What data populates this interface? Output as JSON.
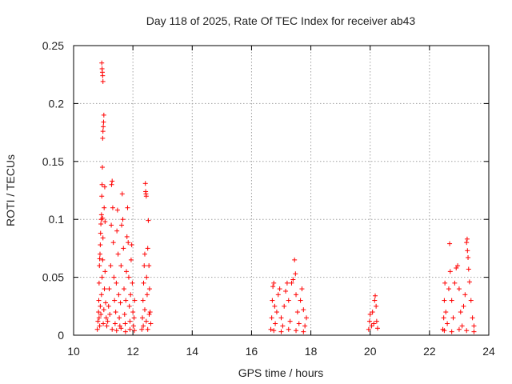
{
  "chart_data": {
    "type": "scatter",
    "title": "Day 118 of 2025, Rate Of TEC Index for receiver ab43",
    "xlabel": "GPS time / hours",
    "ylabel": "ROTI / TECUs",
    "xlim": [
      10,
      24
    ],
    "ylim": [
      0,
      0.25
    ],
    "x_ticks": [
      "10",
      "12",
      "14",
      "16",
      "18",
      "20",
      "22",
      "24"
    ],
    "y_ticks": [
      "0",
      "0.05",
      "0.1",
      "0.15",
      "0.2",
      "0.25"
    ],
    "grid": true,
    "marker": "+",
    "series_color": "#ff0000",
    "series": [
      {
        "points": [
          [
            10.8,
            0.005
          ],
          [
            10.82,
            0.012
          ],
          [
            10.84,
            0.02
          ],
          [
            10.85,
            0.03
          ],
          [
            10.86,
            0.045
          ],
          [
            10.87,
            0.06
          ],
          [
            10.88,
            0.066
          ],
          [
            10.89,
            0.07
          ],
          [
            10.9,
            0.078
          ],
          [
            10.91,
            0.088
          ],
          [
            10.92,
            0.096
          ],
          [
            10.93,
            0.1
          ],
          [
            10.94,
            0.104
          ],
          [
            10.95,
            0.12
          ],
          [
            10.96,
            0.13
          ],
          [
            10.97,
            0.145
          ],
          [
            10.98,
            0.101
          ],
          [
            10.99,
            0.084
          ],
          [
            10.86,
            0.015
          ],
          [
            10.88,
            0.008
          ],
          [
            10.9,
            0.025
          ],
          [
            10.92,
            0.018
          ],
          [
            10.94,
            0.035
          ],
          [
            10.96,
            0.05
          ],
          [
            10.98,
            0.065
          ],
          [
            11.0,
            0.01
          ],
          [
            11.02,
            0.022
          ],
          [
            11.04,
            0.04
          ],
          [
            11.06,
            0.055
          ],
          [
            11.08,
            0.028
          ],
          [
            11.1,
            0.015
          ],
          [
            11.12,
            0.008
          ],
          [
            10.95,
            0.235
          ],
          [
            10.96,
            0.23
          ],
          [
            10.97,
            0.227
          ],
          [
            10.98,
            0.224
          ],
          [
            10.99,
            0.219
          ],
          [
            11.02,
            0.19
          ],
          [
            11.01,
            0.184
          ],
          [
            11.0,
            0.18
          ],
          [
            10.99,
            0.176
          ],
          [
            10.98,
            0.17
          ],
          [
            11.05,
            0.128
          ],
          [
            11.03,
            0.11
          ],
          [
            11.06,
            0.098
          ],
          [
            11.15,
            0.012
          ],
          [
            11.18,
            0.025
          ],
          [
            11.2,
            0.04
          ],
          [
            11.22,
            0.018
          ],
          [
            11.25,
            0.06
          ],
          [
            11.27,
            0.095
          ],
          [
            11.28,
            0.13
          ],
          [
            11.3,
            0.133
          ],
          [
            11.32,
            0.11
          ],
          [
            11.34,
            0.08
          ],
          [
            11.36,
            0.05
          ],
          [
            11.38,
            0.03
          ],
          [
            11.4,
            0.01
          ],
          [
            11.42,
            0.02
          ],
          [
            11.44,
            0.045
          ],
          [
            11.46,
            0.09
          ],
          [
            11.48,
            0.108
          ],
          [
            11.5,
            0.07
          ],
          [
            11.52,
            0.035
          ],
          [
            11.54,
            0.015
          ],
          [
            11.56,
            0.008
          ],
          [
            11.58,
            0.028
          ],
          [
            11.6,
            0.06
          ],
          [
            11.62,
            0.095
          ],
          [
            11.64,
            0.122
          ],
          [
            11.66,
            0.1
          ],
          [
            11.68,
            0.075
          ],
          [
            11.7,
            0.04
          ],
          [
            11.72,
            0.018
          ],
          [
            11.74,
            0.01
          ],
          [
            11.76,
            0.03
          ],
          [
            11.78,
            0.055
          ],
          [
            11.8,
            0.085
          ],
          [
            11.82,
            0.11
          ],
          [
            11.84,
            0.08
          ],
          [
            11.86,
            0.05
          ],
          [
            11.88,
            0.025
          ],
          [
            11.9,
            0.012
          ],
          [
            11.92,
            0.035
          ],
          [
            11.94,
            0.065
          ],
          [
            11.96,
            0.078
          ],
          [
            11.98,
            0.045
          ],
          [
            12.0,
            0.02
          ],
          [
            12.02,
            0.008
          ],
          [
            12.04,
            0.015
          ],
          [
            12.06,
            0.03
          ],
          [
            11.3,
            0.005
          ],
          [
            11.45,
            0.004
          ],
          [
            11.6,
            0.006
          ],
          [
            11.75,
            0.003
          ],
          [
            11.9,
            0.005
          ],
          [
            12.05,
            0.004
          ],
          [
            12.3,
            0.005
          ],
          [
            12.32,
            0.015
          ],
          [
            12.34,
            0.03
          ],
          [
            12.36,
            0.045
          ],
          [
            12.38,
            0.06
          ],
          [
            12.4,
            0.07
          ],
          [
            12.42,
            0.131
          ],
          [
            12.43,
            0.124
          ],
          [
            12.44,
            0.122
          ],
          [
            12.45,
            0.12
          ],
          [
            12.46,
            0.05
          ],
          [
            12.48,
            0.035
          ],
          [
            12.5,
            0.075
          ],
          [
            12.52,
            0.099
          ],
          [
            12.54,
            0.06
          ],
          [
            12.56,
            0.04
          ],
          [
            12.58,
            0.02
          ],
          [
            12.6,
            0.01
          ],
          [
            12.35,
            0.008
          ],
          [
            12.4,
            0.022
          ],
          [
            12.45,
            0.012
          ],
          [
            12.5,
            0.005
          ],
          [
            12.55,
            0.018
          ],
          [
            16.65,
            0.005
          ],
          [
            16.68,
            0.015
          ],
          [
            16.7,
            0.03
          ],
          [
            16.72,
            0.042
          ],
          [
            16.75,
            0.045
          ],
          [
            16.78,
            0.025
          ],
          [
            16.8,
            0.01
          ],
          [
            16.85,
            0.02
          ],
          [
            16.9,
            0.035
          ],
          [
            16.95,
            0.04
          ],
          [
            17.0,
            0.015
          ],
          [
            17.05,
            0.008
          ],
          [
            17.1,
            0.025
          ],
          [
            17.15,
            0.038
          ],
          [
            17.2,
            0.045
          ],
          [
            17.25,
            0.03
          ],
          [
            17.3,
            0.012
          ],
          [
            17.35,
            0.045
          ],
          [
            17.4,
            0.048
          ],
          [
            17.45,
            0.065
          ],
          [
            17.48,
            0.053
          ],
          [
            17.5,
            0.035
          ],
          [
            17.55,
            0.02
          ],
          [
            17.6,
            0.01
          ],
          [
            17.65,
            0.03
          ],
          [
            17.7,
            0.04
          ],
          [
            17.75,
            0.022
          ],
          [
            17.8,
            0.008
          ],
          [
            17.85,
            0.015
          ],
          [
            16.75,
            0.004
          ],
          [
            17.0,
            0.003
          ],
          [
            17.25,
            0.005
          ],
          [
            17.5,
            0.004
          ],
          [
            17.75,
            0.003
          ],
          [
            19.95,
            0.005
          ],
          [
            19.98,
            0.012
          ],
          [
            20.0,
            0.018
          ],
          [
            20.05,
            0.008
          ],
          [
            20.08,
            0.02
          ],
          [
            20.12,
            0.01
          ],
          [
            20.15,
            0.03
          ],
          [
            20.17,
            0.034
          ],
          [
            20.2,
            0.025
          ],
          [
            20.22,
            0.012
          ],
          [
            20.25,
            0.006
          ],
          [
            22.45,
            0.005
          ],
          [
            22.48,
            0.015
          ],
          [
            22.5,
            0.03
          ],
          [
            22.52,
            0.045
          ],
          [
            22.55,
            0.02
          ],
          [
            22.6,
            0.01
          ],
          [
            22.65,
            0.04
          ],
          [
            22.68,
            0.079
          ],
          [
            22.7,
            0.055
          ],
          [
            22.75,
            0.03
          ],
          [
            22.8,
            0.015
          ],
          [
            22.85,
            0.045
          ],
          [
            22.9,
            0.058
          ],
          [
            22.95,
            0.06
          ],
          [
            23.0,
            0.04
          ],
          [
            23.05,
            0.02
          ],
          [
            23.1,
            0.008
          ],
          [
            23.15,
            0.025
          ],
          [
            23.2,
            0.035
          ],
          [
            23.25,
            0.08
          ],
          [
            23.27,
            0.083
          ],
          [
            23.28,
            0.073
          ],
          [
            23.3,
            0.067
          ],
          [
            23.32,
            0.057
          ],
          [
            23.35,
            0.046
          ],
          [
            23.4,
            0.03
          ],
          [
            23.45,
            0.015
          ],
          [
            23.5,
            0.008
          ],
          [
            22.5,
            0.004
          ],
          [
            22.75,
            0.003
          ],
          [
            23.0,
            0.005
          ],
          [
            23.25,
            0.004
          ],
          [
            23.5,
            0.003
          ]
        ]
      }
    ]
  }
}
